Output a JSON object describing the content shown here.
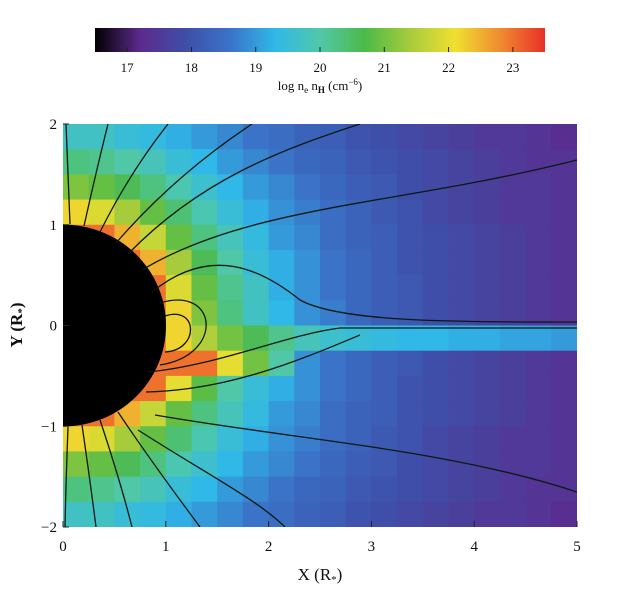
{
  "chart_data": {
    "type": "heatmap",
    "xlabel": [
      "X (R",
      "*",
      ")"
    ],
    "ylabel": [
      "Y (R",
      "*",
      ")"
    ],
    "colorbar_label": [
      "log n",
      "e",
      " n",
      "H",
      " (cm",
      "−6",
      ")"
    ],
    "xlim": [
      0,
      5
    ],
    "ylim": [
      -2,
      2
    ],
    "xticks": [
      0,
      1,
      2,
      3,
      4,
      5
    ],
    "yticks": [
      {
        "value": -2,
        "label": "−2"
      },
      {
        "value": -1,
        "label": "−1"
      },
      0,
      1,
      2
    ],
    "clim": [
      16.5,
      23.5
    ],
    "cticks": [
      17,
      18,
      19,
      20,
      21,
      22,
      23
    ],
    "colormap": [
      "#000000",
      "#5c2a8c",
      "#3f4ea8",
      "#3a73c8",
      "#30b8e8",
      "#50c8a8",
      "#4cba48",
      "#a6cc3c",
      "#f0e030",
      "#f08c30",
      "#e83028"
    ],
    "x": [
      0.125,
      0.375,
      0.625,
      0.875,
      1.125,
      1.375,
      1.625,
      1.875,
      2.125,
      2.375,
      2.625,
      2.875,
      3.125,
      3.375,
      3.625,
      3.875,
      4.125,
      4.375,
      4.625,
      4.875
    ],
    "y": [
      1.875,
      1.625,
      1.375,
      1.125,
      0.875,
      0.625,
      0.375,
      0.125,
      -0.125,
      -0.375,
      -0.625,
      -0.875,
      -1.125,
      -1.375,
      -1.625,
      -1.875
    ],
    "z": [
      [
        19.7,
        19.7,
        19.5,
        19.4,
        19.2,
        19.0,
        18.8,
        18.6,
        18.5,
        18.3,
        18.2,
        18.0,
        17.9,
        17.8,
        17.7,
        17.6,
        17.5,
        17.5,
        17.4,
        17.3
      ],
      [
        20.3,
        20.2,
        20.0,
        19.8,
        19.5,
        19.3,
        19.0,
        18.8,
        18.6,
        18.4,
        18.3,
        18.1,
        18.0,
        17.9,
        17.8,
        17.7,
        17.6,
        17.5,
        17.4,
        17.4
      ],
      [
        21.1,
        20.9,
        20.6,
        20.3,
        19.9,
        19.6,
        19.3,
        19.0,
        18.8,
        18.6,
        18.4,
        18.2,
        18.1,
        17.9,
        17.8,
        17.7,
        17.6,
        17.5,
        17.5,
        17.4
      ],
      [
        22.2,
        21.9,
        21.4,
        20.9,
        20.4,
        19.9,
        19.5,
        19.2,
        18.9,
        18.7,
        18.5,
        18.3,
        18.1,
        18.0,
        17.8,
        17.7,
        17.6,
        17.5,
        17.5,
        17.4
      ],
      [
        23,
        23,
        22.5,
        21.7,
        20.9,
        20.3,
        19.8,
        19.4,
        19.0,
        18.8,
        18.5,
        18.3,
        18.2,
        18.0,
        17.9,
        17.8,
        17.7,
        17.6,
        17.5,
        17.4
      ],
      [
        null,
        null,
        23,
        22.5,
        21.4,
        20.6,
        20.0,
        19.5,
        19.2,
        18.9,
        18.6,
        18.4,
        18.2,
        18.0,
        17.9,
        17.8,
        17.7,
        17.6,
        17.5,
        17.4
      ],
      [
        null,
        null,
        null,
        23,
        21.9,
        20.9,
        20.2,
        19.7,
        19.2,
        18.9,
        18.6,
        18.4,
        18.2,
        18.1,
        17.9,
        17.8,
        17.7,
        17.6,
        17.5,
        17.4
      ],
      [
        null,
        null,
        null,
        23,
        22.2,
        21.1,
        20.3,
        19.7,
        19.3,
        18.9,
        18.7,
        18.4,
        18.2,
        18.1,
        17.9,
        17.8,
        17.7,
        17.6,
        17.5,
        17.4
      ],
      [
        null,
        null,
        null,
        23,
        22.2,
        21.5,
        21.0,
        20.6,
        20.2,
        19.8,
        19.6,
        19.5,
        19.4,
        19.3,
        19.3,
        19.2,
        19.2,
        19.1,
        19.1,
        19.0
      ],
      [
        null,
        null,
        null,
        23,
        23,
        23,
        22.0,
        21.0,
        20.0,
        18.9,
        18.6,
        18.4,
        18.2,
        18.1,
        17.9,
        17.8,
        17.7,
        17.6,
        17.5,
        17.4
      ],
      [
        null,
        null,
        23,
        23,
        22.0,
        20.8,
        20.0,
        19.5,
        19.2,
        18.9,
        18.6,
        18.4,
        18.2,
        18.0,
        17.9,
        17.8,
        17.7,
        17.6,
        17.5,
        17.4
      ],
      [
        23,
        23,
        22.5,
        21.7,
        20.9,
        20.3,
        19.8,
        19.4,
        19.0,
        18.8,
        18.5,
        18.3,
        18.2,
        18.0,
        17.9,
        17.8,
        17.7,
        17.6,
        17.5,
        17.4
      ],
      [
        22.2,
        21.9,
        21.4,
        20.9,
        20.4,
        19.9,
        19.5,
        19.2,
        18.9,
        18.7,
        18.5,
        18.3,
        18.1,
        18.0,
        17.8,
        17.7,
        17.6,
        17.5,
        17.5,
        17.4
      ],
      [
        21.1,
        20.9,
        20.6,
        20.3,
        19.9,
        19.6,
        19.3,
        19.0,
        18.8,
        18.6,
        18.4,
        18.2,
        18.1,
        17.9,
        17.8,
        17.7,
        17.6,
        17.5,
        17.5,
        17.4
      ],
      [
        20.3,
        20.2,
        20.0,
        19.8,
        19.5,
        19.3,
        19.0,
        18.8,
        18.6,
        18.4,
        18.3,
        18.1,
        18.0,
        17.9,
        17.8,
        17.7,
        17.6,
        17.5,
        17.4,
        17.4
      ],
      [
        19.7,
        19.7,
        19.5,
        19.4,
        19.2,
        19.0,
        18.8,
        18.6,
        18.5,
        18.3,
        18.2,
        18.0,
        17.9,
        17.8,
        17.7,
        17.6,
        17.5,
        17.5,
        17.4,
        17.3
      ]
    ]
  }
}
